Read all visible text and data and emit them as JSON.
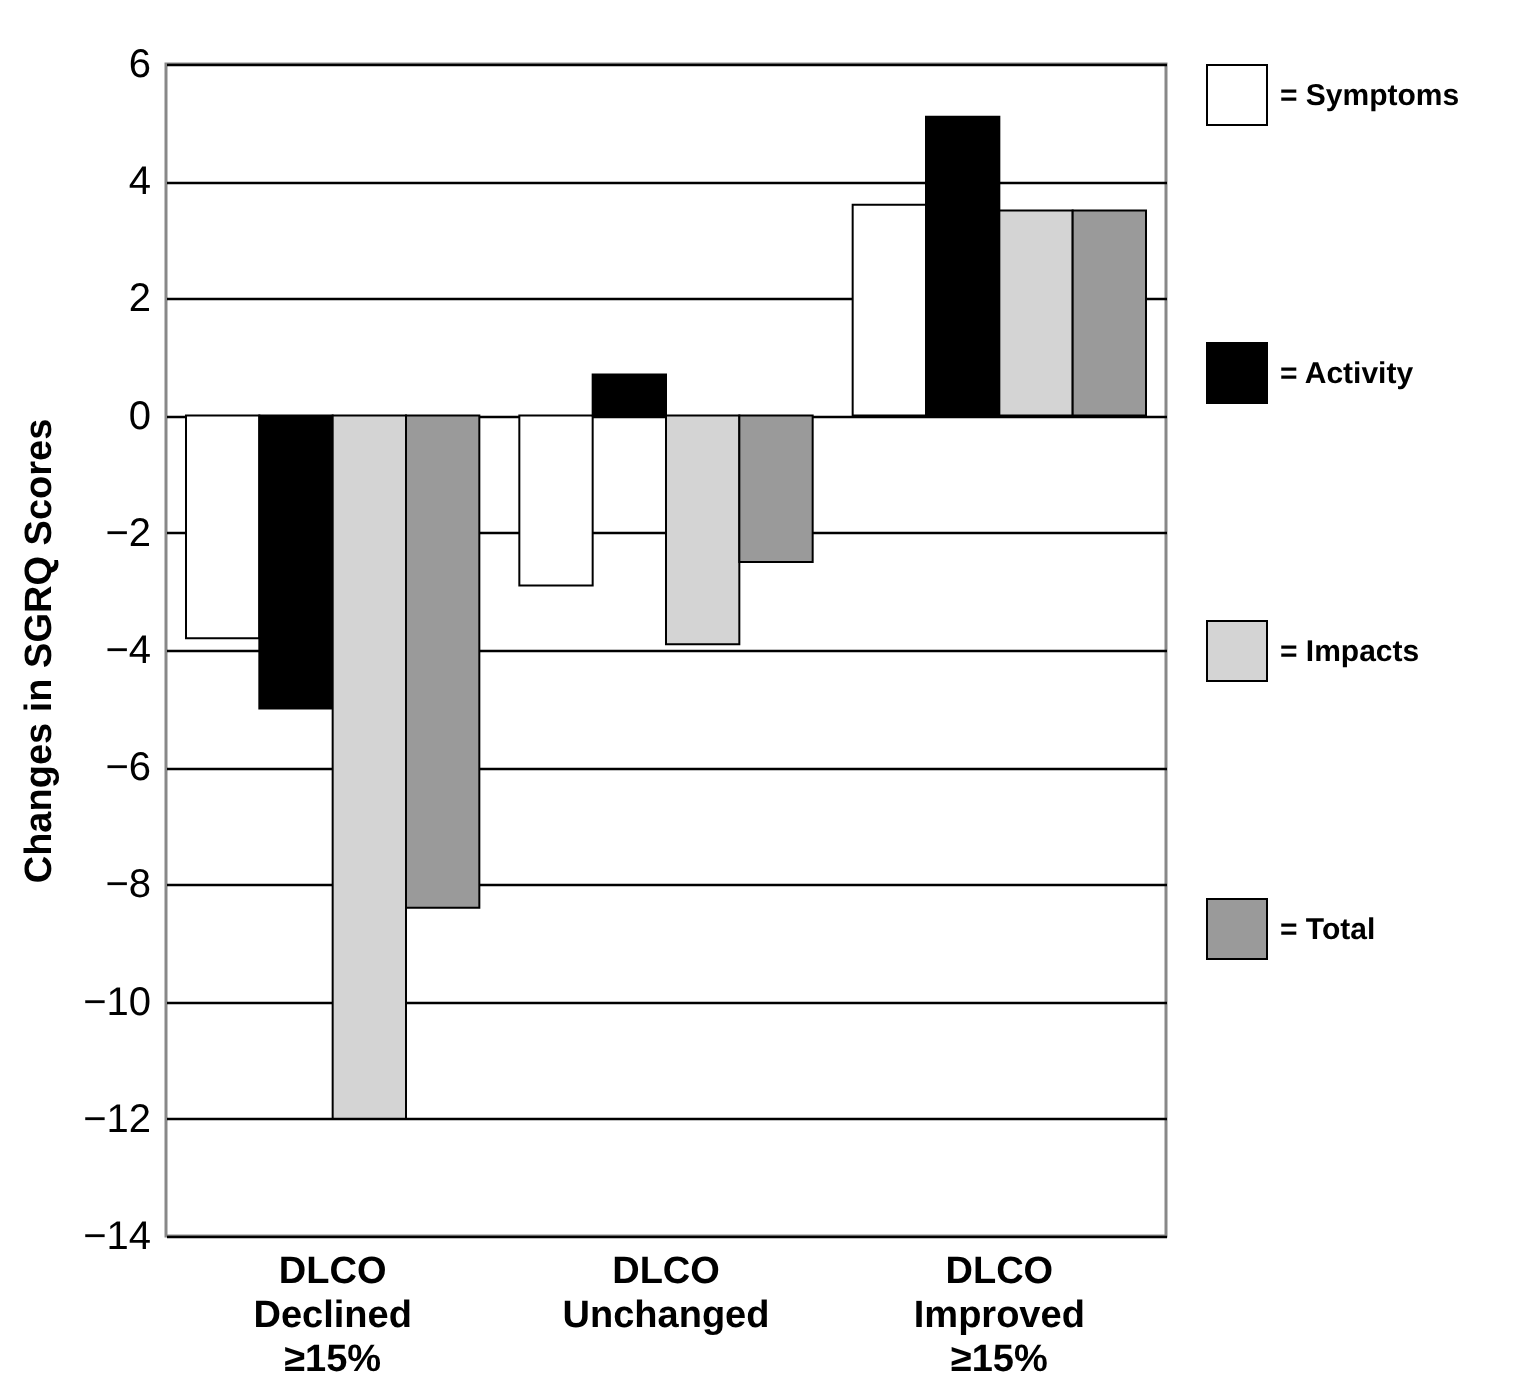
{
  "chart_data": {
    "type": "bar",
    "ylabel": "Changes in SGRQ Scores",
    "categories": [
      "DLCO Declined ≥15%",
      "DLCO Unchanged",
      "DLCO Improved ≥15%"
    ],
    "series": [
      {
        "name": "= Symptoms",
        "color": "#ffffff",
        "values": [
          -3.8,
          -2.9,
          3.6
        ]
      },
      {
        "name": "= Activity",
        "color": "#000000",
        "values": [
          -5.0,
          0.7,
          5.1
        ]
      },
      {
        "name": "= Impacts",
        "color": "#d4d4d4",
        "values": [
          -12.0,
          -3.9,
          3.5
        ]
      },
      {
        "name": "= Total",
        "color": "#9a9a9a",
        "values": [
          -8.4,
          -2.5,
          3.5
        ]
      }
    ],
    "ylim": [
      -14,
      6
    ],
    "yticks": [
      -14,
      -12,
      -10,
      -8,
      -6,
      -4,
      -2,
      0,
      2,
      4,
      6
    ],
    "grid": "y",
    "legend": "right"
  }
}
